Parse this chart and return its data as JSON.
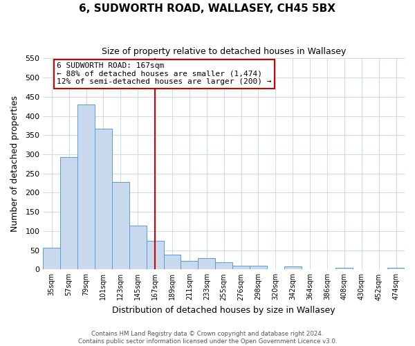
{
  "title": "6, SUDWORTH ROAD, WALLASEY, CH45 5BX",
  "subtitle": "Size of property relative to detached houses in Wallasey",
  "xlabel": "Distribution of detached houses by size in Wallasey",
  "ylabel": "Number of detached properties",
  "bar_labels": [
    "35sqm",
    "57sqm",
    "79sqm",
    "101sqm",
    "123sqm",
    "145sqm",
    "167sqm",
    "189sqm",
    "211sqm",
    "233sqm",
    "255sqm",
    "276sqm",
    "298sqm",
    "320sqm",
    "342sqm",
    "364sqm",
    "386sqm",
    "408sqm",
    "430sqm",
    "452sqm",
    "474sqm"
  ],
  "bar_values": [
    57,
    293,
    430,
    366,
    227,
    114,
    75,
    38,
    22,
    29,
    18,
    10,
    10,
    0,
    8,
    0,
    0,
    4,
    0,
    0,
    4
  ],
  "bar_color": "#c8d9ee",
  "bar_edge_color": "#5b9bd5",
  "vline_x": 6,
  "vline_color": "#cc0000",
  "annotation_title": "6 SUDWORTH ROAD: 167sqm",
  "annotation_line1": "← 88% of detached houses are smaller (1,474)",
  "annotation_line2": "12% of semi-detached houses are larger (200) →",
  "annotation_box_color": "#ffffff",
  "annotation_box_edge": "#cc0000",
  "ylim": [
    0,
    550
  ],
  "yticks": [
    0,
    50,
    100,
    150,
    200,
    250,
    300,
    350,
    400,
    450,
    500,
    550
  ],
  "footer_line1": "Contains HM Land Registry data © Crown copyright and database right 2024.",
  "footer_line2": "Contains public sector information licensed under the Open Government Licence v3.0.",
  "background_color": "#ffffff",
  "grid_color": "#c5d5e8"
}
